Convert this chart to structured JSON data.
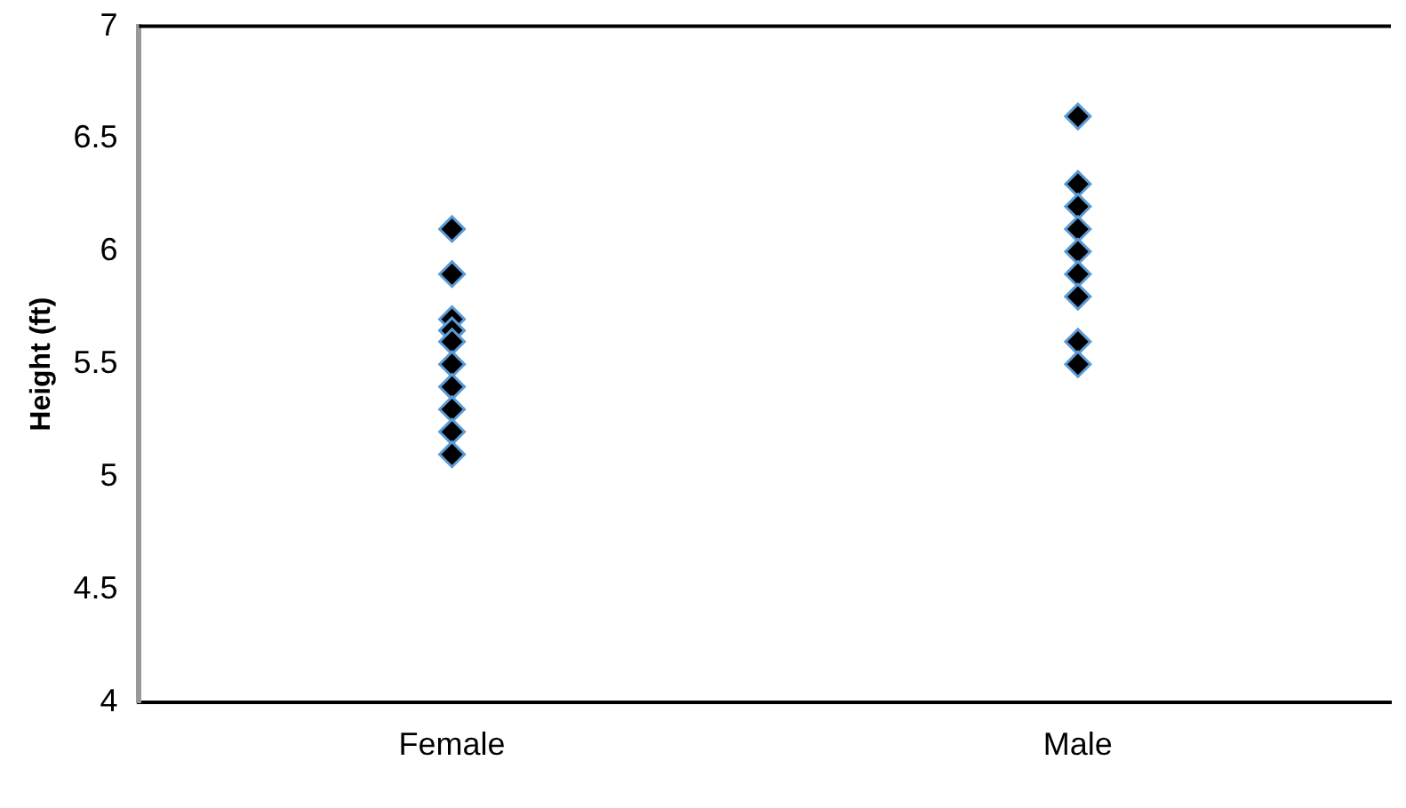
{
  "chart_data": {
    "type": "scatter",
    "ylabel": "Height (ft)",
    "categories": [
      "Female",
      "Male"
    ],
    "series": [
      {
        "color": "#000000",
        "x": [
          "Female",
          "Female",
          "Female",
          "Female",
          "Female",
          "Female",
          "Female",
          "Female",
          "Female",
          "Female",
          "Male",
          "Male",
          "Male",
          "Male",
          "Male",
          "Male",
          "Male",
          "Male",
          "Male"
        ],
        "values": [
          6.1,
          5.9,
          5.7,
          5.65,
          5.6,
          5.5,
          5.4,
          5.3,
          5.2,
          5.1,
          6.6,
          6.3,
          6.2,
          6.1,
          6.0,
          5.9,
          5.8,
          5.6,
          5.5
        ]
      }
    ],
    "ylim": [
      4,
      7
    ],
    "yticks": [
      4,
      4.5,
      5,
      5.5,
      6,
      6.5,
      7
    ],
    "grid": false,
    "legend": false,
    "marker": "diamond"
  }
}
